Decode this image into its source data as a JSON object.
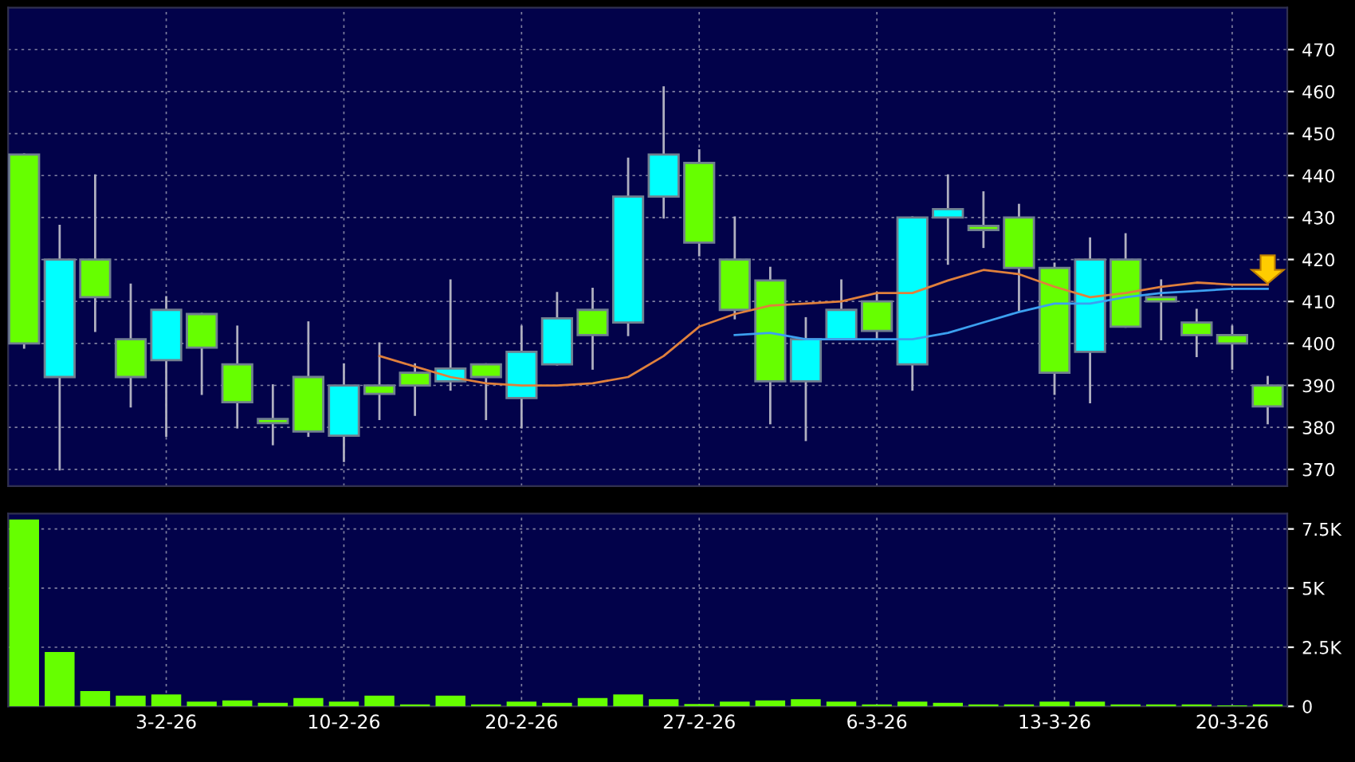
{
  "chart_data": [
    {
      "type": "candlestick",
      "ohlc": [
        [
          445,
          445,
          399,
          400
        ],
        [
          392,
          428,
          370,
          420
        ],
        [
          420,
          440,
          403,
          411
        ],
        [
          401,
          414,
          385,
          392
        ],
        [
          396,
          411,
          378,
          408
        ],
        [
          407,
          407,
          388,
          399
        ],
        [
          395,
          404,
          380,
          386
        ],
        [
          382,
          390,
          376,
          381
        ],
        [
          392,
          405,
          378,
          379
        ],
        [
          378,
          395,
          372,
          390
        ],
        [
          390,
          400,
          382,
          388
        ],
        [
          393,
          395,
          383,
          390
        ],
        [
          391,
          415,
          389,
          394
        ],
        [
          395,
          395,
          382,
          392
        ],
        [
          387,
          404,
          380,
          398
        ],
        [
          395,
          412,
          395,
          406
        ],
        [
          408,
          413,
          394,
          402
        ],
        [
          405,
          444,
          402,
          435
        ],
        [
          435,
          461,
          430,
          445
        ],
        [
          443,
          446,
          421,
          424
        ],
        [
          420,
          430,
          406,
          408
        ],
        [
          415,
          418,
          381,
          391
        ],
        [
          391,
          406,
          377,
          401
        ],
        [
          401,
          415,
          401,
          408
        ],
        [
          410,
          412,
          401,
          403
        ],
        [
          395,
          430,
          389,
          430
        ],
        [
          430,
          440,
          419,
          432
        ],
        [
          428,
          436,
          423,
          427
        ],
        [
          430,
          433,
          408,
          418
        ],
        [
          418,
          419,
          388,
          393
        ],
        [
          398,
          425,
          386,
          420
        ],
        [
          420,
          426,
          404,
          404
        ],
        [
          411,
          415,
          401,
          410
        ],
        [
          405,
          408,
          397,
          402
        ],
        [
          402,
          404,
          394,
          400
        ],
        [
          390,
          392,
          381,
          385
        ]
      ],
      "colors": [
        "#66ff00",
        "#00ffff",
        "#66ff00",
        "#66ff00",
        "#00ffff",
        "#66ff00",
        "#66ff00",
        "#66ff00",
        "#66ff00",
        "#00ffff",
        "#66ff00",
        "#66ff00",
        "#00ffff",
        "#66ff00",
        "#00ffff",
        "#00ffff",
        "#66ff00",
        "#00ffff",
        "#00ffff",
        "#66ff00",
        "#66ff00",
        "#66ff00",
        "#00ffff",
        "#00ffff",
        "#66ff00",
        "#00ffff",
        "#00ffff",
        "#66ff00",
        "#66ff00",
        "#66ff00",
        "#00ffff",
        "#66ff00",
        "#66ff00",
        "#66ff00",
        "#66ff00",
        "#66ff00"
      ],
      "series": [
        {
          "type": "line",
          "color": "#e0803c",
          "values": [
            null,
            null,
            null,
            null,
            null,
            null,
            null,
            null,
            null,
            null,
            397,
            394.5,
            392,
            390.5,
            390,
            390,
            390.5,
            392,
            397,
            404,
            407,
            409,
            409.5,
            410,
            412,
            412,
            415,
            417.5,
            416.5,
            413.5,
            411,
            412,
            413.5,
            414.5,
            414,
            414
          ]
        },
        {
          "type": "line",
          "color": "#3ca0f0",
          "values": [
            null,
            null,
            null,
            null,
            null,
            null,
            null,
            null,
            null,
            null,
            null,
            null,
            null,
            null,
            null,
            null,
            null,
            null,
            null,
            null,
            402,
            402.5,
            401,
            401,
            401,
            401,
            402.5,
            405,
            407.5,
            409.5,
            409.5,
            411,
            412,
            412.5,
            413,
            413
          ]
        }
      ],
      "ylim": [
        366,
        480
      ],
      "yticks": [
        370,
        380,
        390,
        400,
        410,
        420,
        430,
        440,
        450,
        460,
        470
      ],
      "grid": true,
      "tick_labels": "y"
    },
    {
      "type": "bar",
      "categories": [
        null,
        null,
        null,
        null,
        "3-2-26",
        null,
        null,
        null,
        null,
        "10-2-26",
        null,
        null,
        null,
        null,
        "20-2-26",
        null,
        null,
        null,
        null,
        "27-2-26",
        null,
        null,
        null,
        null,
        "6-3-26",
        null,
        null,
        null,
        null,
        "13-3-26",
        null,
        null,
        null,
        null,
        "20-3-26",
        null
      ],
      "values": [
        7900,
        2300,
        650,
        450,
        500,
        200,
        250,
        150,
        350,
        200,
        450,
        80,
        450,
        80,
        200,
        150,
        350,
        500,
        300,
        100,
        200,
        250,
        300,
        200,
        80,
        200,
        150,
        80,
        80,
        200,
        200,
        80,
        80,
        80,
        40,
        80
      ],
      "color": "#66ff00",
      "ylim": [
        0,
        8150
      ],
      "yticks": [
        0,
        {
          "value": 2500,
          "label": "2.5K"
        },
        {
          "value": 5000,
          "label": "5K"
        },
        {
          "value": 7500,
          "label": "7.5K"
        }
      ],
      "grid": true
    }
  ]
}
